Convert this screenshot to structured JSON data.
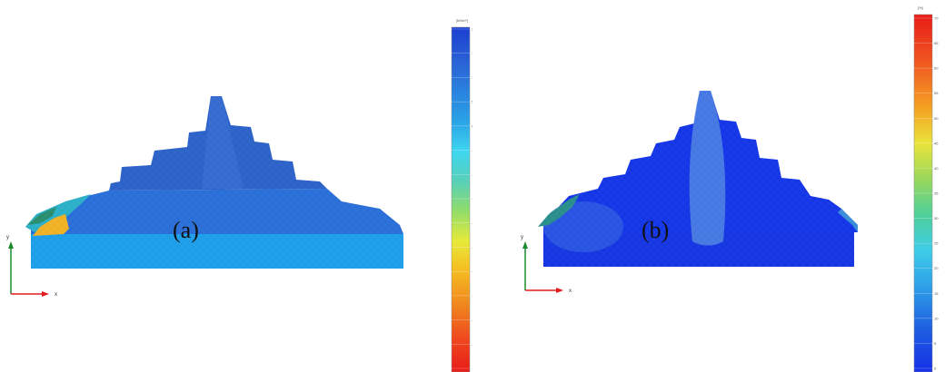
{
  "panels": [
    {
      "label": "(a)",
      "colorbar": {
        "unit": "[kN/m²]",
        "ticks": [
          "200.00",
          "150.00",
          "100.00",
          "50.00",
          "0.00",
          "-50.00",
          "-100.00",
          "-150.00",
          "-200.00",
          "-250.00",
          "-300.00",
          "-350.00",
          "-400.00",
          "-450.00",
          "-500.00"
        ]
      },
      "axes": {
        "y": "y",
        "x": "x"
      }
    },
    {
      "label": "(b)",
      "colorbar": {
        "unit": "[%]",
        "ticks": [
          "70",
          "65",
          "60",
          "55",
          "50",
          "45",
          "40",
          "35",
          "30",
          "25",
          "20",
          "15",
          "10",
          "5",
          "0"
        ]
      },
      "axes": {
        "y": "y",
        "x": "x"
      }
    }
  ],
  "colors": {
    "panel_a_dam": "#2d63c9",
    "panel_a_foundation": "#1e9ee8",
    "panel_b_dam": "#1536e6",
    "panel_b_core": "#4f84e2",
    "axis_y": "#1a8a2a",
    "axis_x": "#e21c1c"
  }
}
